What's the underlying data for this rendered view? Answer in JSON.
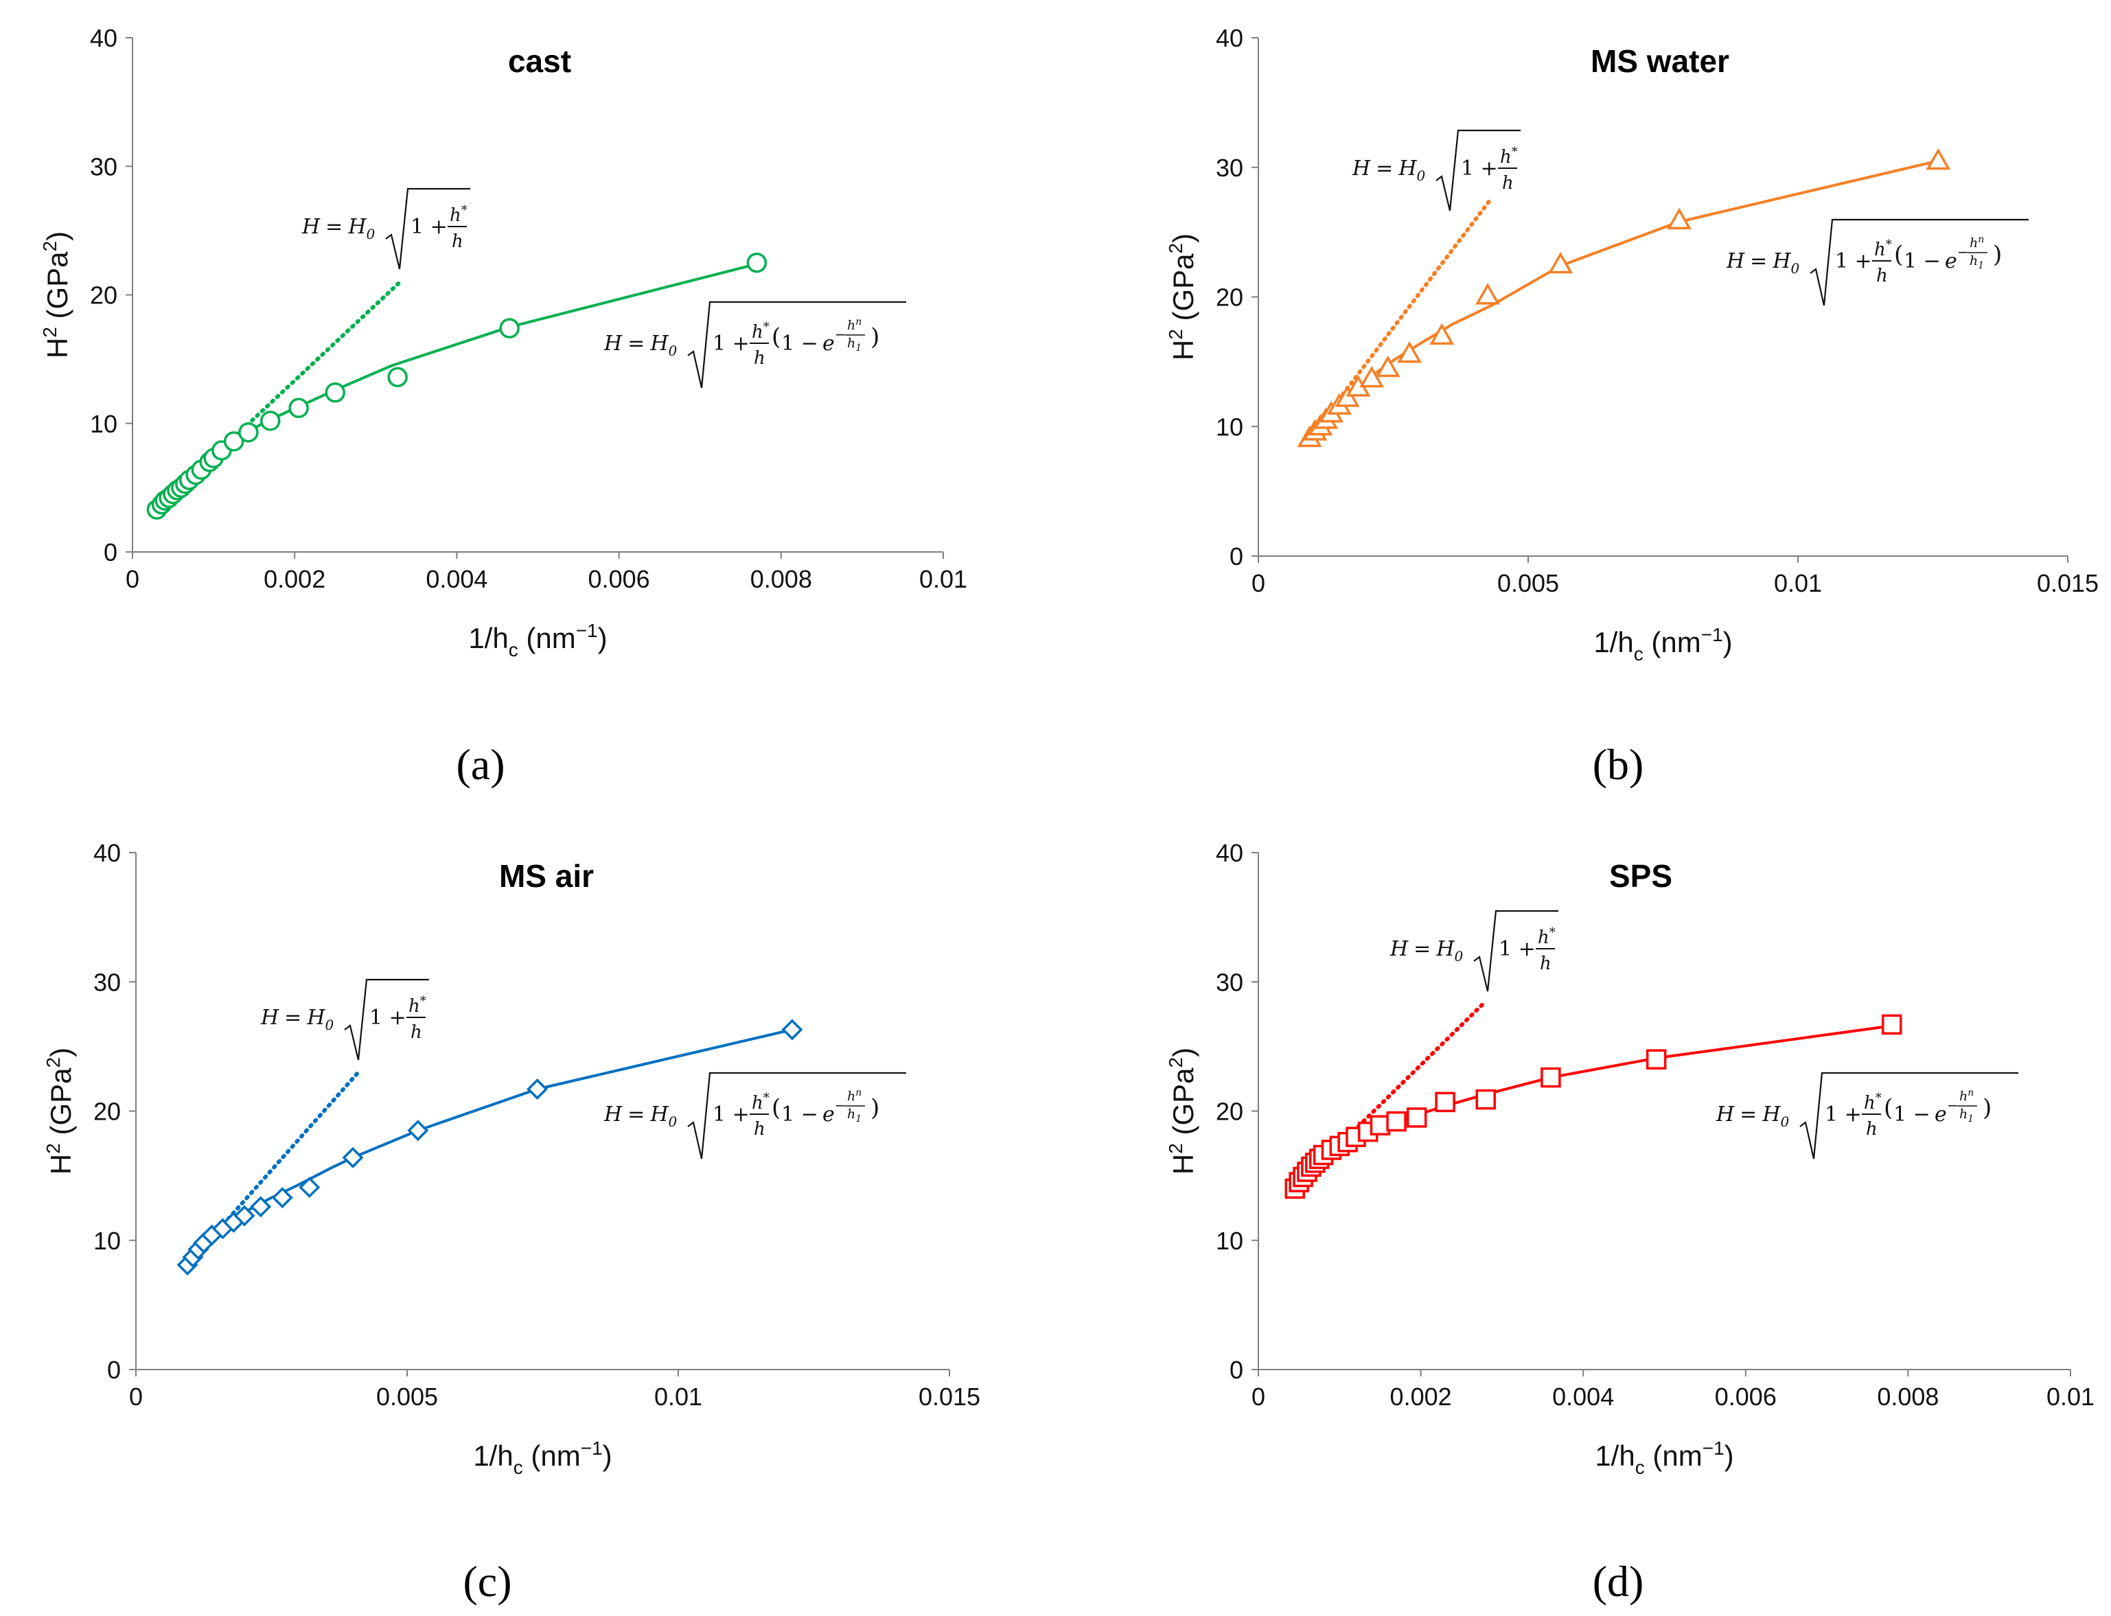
{
  "figure": {
    "panel_labels": [
      "(a)",
      "(b)",
      "(c)",
      "(d)"
    ]
  },
  "chart_data": [
    {
      "type": "scatter",
      "title": "cast",
      "panel_label": "(a)",
      "xlabel": "1/h",
      "xlabel_sub": "c",
      "xlabel_unit": " (nm",
      "xlabel_exp": "−1",
      "xlabel_close": ")",
      "ylabel": "H",
      "ylabel_exp": "2",
      "ylabel_unit": " (GPa",
      "ylabel_unit_exp": "2",
      "ylabel_close": ")",
      "xlim": [
        0,
        0.01
      ],
      "ylim": [
        0,
        40
      ],
      "xticks": [
        0,
        0.002,
        0.004,
        0.006,
        0.008,
        0.01
      ],
      "xtick_labels": [
        "0",
        "0.002",
        "0.004",
        "0.006",
        "0.008",
        "0.01"
      ],
      "yticks": [
        0,
        10,
        20,
        30,
        40
      ],
      "ytick_labels": [
        "0",
        "10",
        "20",
        "30",
        "40"
      ],
      "color": "#00b050",
      "marker": "circle",
      "points": {
        "x": [
          0.0003,
          0.00036,
          0.0004,
          0.00045,
          0.0005,
          0.00055,
          0.0006,
          0.00065,
          0.0007,
          0.00078,
          0.00085,
          0.00095,
          0.001,
          0.0011,
          0.00125,
          0.00143,
          0.0017,
          0.00205,
          0.0025,
          0.00327,
          0.00465,
          0.0077
        ],
        "y": [
          3.3,
          3.7,
          4.0,
          4.2,
          4.5,
          4.8,
          5.0,
          5.3,
          5.6,
          6.0,
          6.4,
          7.0,
          7.3,
          7.9,
          8.6,
          9.3,
          10.2,
          11.2,
          12.4,
          13.6,
          17.4,
          22.5
        ]
      },
      "fit_line": {
        "x": [
          0.0003,
          0.0004,
          0.0005,
          0.0006,
          0.0007,
          0.0008,
          0.0009,
          0.001,
          0.0011,
          0.00125,
          0.00143,
          0.0017,
          0.00205,
          0.0025,
          0.0032,
          0.00465,
          0.0077
        ],
        "y": [
          3.3,
          3.9,
          4.5,
          5.1,
          5.7,
          6.3,
          6.8,
          7.4,
          7.9,
          8.7,
          9.4,
          10.3,
          11.3,
          12.6,
          14.5,
          17.5,
          22.4
        ]
      },
      "simple_line": {
        "x": [
          0.0003,
          0.0033
        ],
        "y": [
          3.3,
          21.0
        ]
      },
      "simple_formula": {
        "lhs": "H",
        "eq": "=",
        "h0": "H",
        "h0_sub": "0",
        "one": "1 +",
        "num": "h",
        "num_sup": "*",
        "den": "h"
      },
      "full_formula": {
        "lhs": "H",
        "eq": "=",
        "h0": "H",
        "h0_sub": "0",
        "one": "1 +",
        "num": "h",
        "num_sup": "*",
        "den": "h",
        "paren_open": "(",
        "one_minus": "1 −",
        "e": "e",
        "exp_minus": "−",
        "exp_num": "h",
        "exp_num_sup": "n",
        "exp_den": "h",
        "exp_den_sub": "1",
        "paren_close": ")"
      }
    },
    {
      "type": "scatter",
      "title": "MS water",
      "panel_label": "(b)",
      "xlabel": "1/h",
      "xlabel_sub": "c",
      "xlabel_unit": " (nm",
      "xlabel_exp": "−1",
      "xlabel_close": ")",
      "ylabel": "H",
      "ylabel_exp": "2",
      "ylabel_unit": " (GPa",
      "ylabel_unit_exp": "2",
      "ylabel_close": ")",
      "xlim": [
        0,
        0.015
      ],
      "ylim": [
        0,
        40
      ],
      "xticks": [
        0,
        0.005,
        0.01,
        0.015
      ],
      "xtick_labels": [
        "0",
        "0.005",
        "0.01",
        "0.015"
      ],
      "yticks": [
        0,
        10,
        20,
        30,
        40
      ],
      "ytick_labels": [
        "0",
        "10",
        "20",
        "30",
        "40"
      ],
      "color": "#f58025",
      "marker": "triangle",
      "points": {
        "x": [
          0.00095,
          0.00105,
          0.00115,
          0.00125,
          0.00135,
          0.0015,
          0.00165,
          0.00185,
          0.0021,
          0.0024,
          0.0028,
          0.0034,
          0.00425,
          0.0056,
          0.0078,
          0.0126
        ],
        "y": [
          9.1,
          9.6,
          10.0,
          10.5,
          11.0,
          11.6,
          12.2,
          13.0,
          13.7,
          14.5,
          15.6,
          17.0,
          20.1,
          22.5,
          25.9,
          30.5
        ]
      },
      "fit_line": {
        "x": [
          0.00095,
          0.0011,
          0.0013,
          0.0015,
          0.0018,
          0.0021,
          0.0025,
          0.003,
          0.0036,
          0.0043,
          0.0056,
          0.0078,
          0.0126
        ],
        "y": [
          9.1,
          9.9,
          10.8,
          11.7,
          12.9,
          13.9,
          15.1,
          16.4,
          17.9,
          19.3,
          22.4,
          25.8,
          30.5
        ]
      },
      "simple_line": {
        "x": [
          0.00095,
          0.0043
        ],
        "y": [
          9.1,
          27.5
        ]
      },
      "simple_formula": {
        "lhs": "H",
        "eq": "=",
        "h0": "H",
        "h0_sub": "0",
        "one": "1 +",
        "num": "h",
        "num_sup": "*",
        "den": "h"
      },
      "full_formula": {
        "lhs": "H",
        "eq": "=",
        "h0": "H",
        "h0_sub": "0",
        "one": "1 +",
        "num": "h",
        "num_sup": "*",
        "den": "h",
        "paren_open": "(",
        "one_minus": "1 −",
        "e": "e",
        "exp_minus": "−",
        "exp_num": "h",
        "exp_num_sup": "n",
        "exp_den": "h",
        "exp_den_sub": "1",
        "paren_close": ")"
      }
    },
    {
      "type": "scatter",
      "title": "MS air",
      "panel_label": "(c)",
      "xlabel": "1/h",
      "xlabel_sub": "c",
      "xlabel_unit": " (nm",
      "xlabel_exp": "−1",
      "xlabel_close": ")",
      "ylabel": "H",
      "ylabel_exp": "2",
      "ylabel_unit": " (GPa",
      "ylabel_unit_exp": "2",
      "ylabel_close": ")",
      "xlim": [
        0,
        0.015
      ],
      "ylim": [
        0,
        40
      ],
      "xticks": [
        0,
        0.005,
        0.01,
        0.015
      ],
      "xtick_labels": [
        "0",
        "0.005",
        "0.01",
        "0.015"
      ],
      "yticks": [
        0,
        10,
        20,
        30,
        40
      ],
      "ytick_labels": [
        "0",
        "10",
        "20",
        "30",
        "40"
      ],
      "color": "#0070c0",
      "marker": "diamond",
      "points": {
        "x": [
          0.00095,
          0.00105,
          0.00115,
          0.00125,
          0.0014,
          0.0016,
          0.0018,
          0.002,
          0.0023,
          0.0027,
          0.0032,
          0.004,
          0.0052,
          0.0074,
          0.0121
        ],
        "y": [
          8.1,
          8.7,
          9.3,
          9.8,
          10.4,
          10.9,
          11.4,
          11.9,
          12.6,
          13.3,
          14.1,
          16.4,
          18.5,
          21.7,
          26.3
        ]
      },
      "fit_line": {
        "x": [
          0.00095,
          0.0011,
          0.0013,
          0.0015,
          0.0018,
          0.0021,
          0.0025,
          0.003,
          0.0036,
          0.004,
          0.0052,
          0.0074,
          0.0121
        ],
        "y": [
          8.1,
          9.0,
          10.0,
          10.9,
          11.7,
          12.4,
          13.3,
          14.3,
          15.6,
          16.4,
          18.5,
          21.7,
          26.3
        ]
      },
      "simple_line": {
        "x": [
          0.00095,
          0.0041
        ],
        "y": [
          8.1,
          23.0
        ]
      },
      "simple_formula": {
        "lhs": "H",
        "eq": "=",
        "h0": "H",
        "h0_sub": "0",
        "one": "1 +",
        "num": "h",
        "num_sup": "*",
        "den": "h"
      },
      "full_formula": {
        "lhs": "H",
        "eq": "=",
        "h0": "H",
        "h0_sub": "0",
        "one": "1 +",
        "num": "h",
        "num_sup": "*",
        "den": "h",
        "paren_open": "(",
        "one_minus": "1 −",
        "e": "e",
        "exp_minus": "−",
        "exp_num": "h",
        "exp_num_sup": "n",
        "exp_den": "h",
        "exp_den_sub": "1",
        "paren_close": ")"
      }
    },
    {
      "type": "scatter",
      "title": "SPS",
      "panel_label": "(d)",
      "xlabel": "1/h",
      "xlabel_sub": "c",
      "xlabel_unit": " (nm",
      "xlabel_exp": "−1",
      "xlabel_close": ")",
      "ylabel": "H",
      "ylabel_exp": "2",
      "ylabel_unit": " (GPa",
      "ylabel_unit_exp": "2",
      "ylabel_close": ")",
      "xlim": [
        0,
        0.01
      ],
      "ylim": [
        0,
        40
      ],
      "xticks": [
        0,
        0.002,
        0.004,
        0.006,
        0.008,
        0.01
      ],
      "xtick_labels": [
        "0",
        "0.002",
        "0.004",
        "0.006",
        "0.008",
        "0.01"
      ],
      "yticks": [
        0,
        10,
        20,
        30,
        40
      ],
      "ytick_labels": [
        "0",
        "10",
        "20",
        "30",
        "40"
      ],
      "color": "#ff0000",
      "marker": "square",
      "points": {
        "x": [
          0.00045,
          0.0005,
          0.00055,
          0.0006,
          0.00065,
          0.0007,
          0.00075,
          0.0008,
          0.0009,
          0.001,
          0.0011,
          0.0012,
          0.00135,
          0.0015,
          0.0017,
          0.00195,
          0.0023,
          0.0028,
          0.0036,
          0.0049,
          0.0078
        ],
        "y": [
          14.0,
          14.5,
          14.9,
          15.3,
          15.7,
          16.0,
          16.3,
          16.6,
          17.0,
          17.3,
          17.6,
          18.0,
          18.4,
          18.9,
          19.2,
          19.5,
          20.7,
          20.9,
          22.6,
          24.0,
          26.7
        ]
      },
      "fit_line": {
        "x": [
          0.00045,
          0.0006,
          0.0007,
          0.0008,
          0.001,
          0.0012,
          0.0015,
          0.0019,
          0.0023,
          0.0028,
          0.0036,
          0.0049,
          0.0078
        ],
        "y": [
          14.0,
          15.2,
          15.9,
          16.5,
          17.3,
          18.0,
          18.8,
          19.6,
          20.4,
          21.3,
          22.6,
          24.1,
          26.6
        ]
      },
      "simple_line": {
        "x": [
          0.00045,
          0.0028
        ],
        "y": [
          14.0,
          28.5
        ]
      },
      "simple_formula": {
        "lhs": "H",
        "eq": "=",
        "h0": "H",
        "h0_sub": "0",
        "one": "1 +",
        "num": "h",
        "num_sup": "*",
        "den": "h"
      },
      "full_formula": {
        "lhs": "H",
        "eq": "=",
        "h0": "H",
        "h0_sub": "0",
        "one": "1 +",
        "num": "h",
        "num_sup": "*",
        "den": "h",
        "paren_open": "(",
        "one_minus": "1 −",
        "e": "e",
        "exp_minus": "−",
        "exp_num": "h",
        "exp_num_sup": "n",
        "exp_den": "h",
        "exp_den_sub": "1",
        "paren_close": ")"
      }
    }
  ]
}
